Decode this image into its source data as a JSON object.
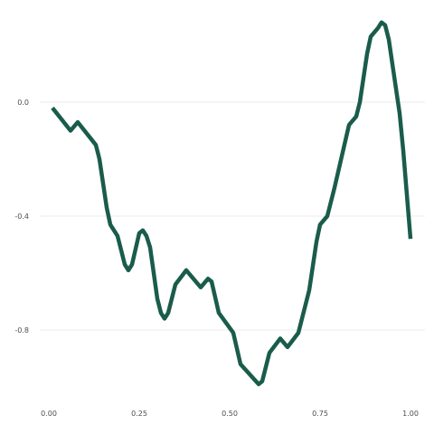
{
  "chart_data": {
    "type": "line",
    "title": "",
    "xlabel": "",
    "ylabel": "",
    "xlim": [
      0.0,
      1.0
    ],
    "ylim": [
      -1.0,
      0.3
    ],
    "grid": true,
    "legend": "none",
    "line_color": "#1a5c4b",
    "x_ticks": [
      {
        "value": 0.0,
        "label": "0.00"
      },
      {
        "value": 0.25,
        "label": "0.25"
      },
      {
        "value": 0.5,
        "label": "0.50"
      },
      {
        "value": 0.75,
        "label": "0.75"
      },
      {
        "value": 1.0,
        "label": "1.00"
      }
    ],
    "y_ticks": [
      {
        "value": 0.0,
        "label": "0.0"
      },
      {
        "value": -0.4,
        "label": "-0.4"
      },
      {
        "value": -0.8,
        "label": "-0.8"
      }
    ],
    "series": [
      {
        "x": [
          0.01,
          0.06,
          0.08,
          0.13,
          0.14,
          0.16,
          0.17,
          0.19,
          0.21,
          0.22,
          0.23,
          0.25,
          0.26,
          0.27,
          0.28,
          0.3,
          0.31,
          0.32,
          0.33,
          0.35,
          0.38,
          0.42,
          0.44,
          0.45,
          0.47,
          0.51,
          0.53,
          0.58,
          0.59,
          0.61,
          0.64,
          0.66,
          0.69,
          0.72,
          0.74,
          0.75,
          0.77,
          0.79,
          0.83,
          0.85,
          0.86,
          0.88,
          0.89,
          0.91,
          0.92,
          0.93,
          0.94,
          0.97,
          0.98,
          1.0
        ],
        "y": [
          -0.02,
          -0.1,
          -0.07,
          -0.15,
          -0.2,
          -0.37,
          -0.43,
          -0.47,
          -0.57,
          -0.59,
          -0.57,
          -0.46,
          -0.45,
          -0.47,
          -0.51,
          -0.69,
          -0.74,
          -0.76,
          -0.74,
          -0.64,
          -0.59,
          -0.65,
          -0.62,
          -0.63,
          -0.74,
          -0.81,
          -0.92,
          -0.99,
          -0.98,
          -0.88,
          -0.83,
          -0.86,
          -0.81,
          -0.66,
          -0.49,
          -0.43,
          -0.4,
          -0.3,
          -0.08,
          -0.05,
          0.0,
          0.17,
          0.23,
          0.26,
          0.28,
          0.27,
          0.22,
          -0.04,
          -0.17,
          -0.48
        ]
      }
    ]
  }
}
